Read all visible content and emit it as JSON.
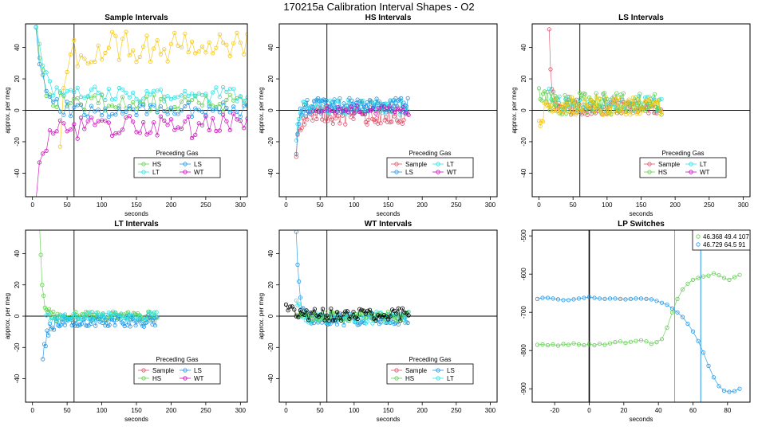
{
  "title": "170215a   Calibration Interval Shapes - O2",
  "colors": {
    "Sample": "#df536b",
    "HS": "#61d04f",
    "LS": "#2297e6",
    "LT": "#28e2e5",
    "WT": "#cd0bbc",
    "yellow": "#f5c710",
    "black": "#000000"
  },
  "chart_data": [
    {
      "type": "scatter",
      "title": "Sample Intervals",
      "xlabel": "seconds",
      "ylabel": "approx. per meg",
      "xlim": [
        -10,
        310
      ],
      "ylim": [
        -55,
        55
      ],
      "xticks": [
        0,
        50,
        100,
        150,
        200,
        250,
        300
      ],
      "yticks": [
        -40,
        -20,
        0,
        20,
        40
      ],
      "vline": 60,
      "hline": 0,
      "legend_title": "Preceding Gas",
      "legend": [
        "HS",
        "LS",
        "LT",
        "WT"
      ],
      "series": [
        {
          "name": "HS",
          "color": "HS",
          "start": 5,
          "end": 310,
          "step": 5,
          "amp": 6,
          "base": 5,
          "decay_amp": 60,
          "decay_tau": 8,
          "seed": 1
        },
        {
          "name": "LS",
          "color": "LS",
          "start": 5,
          "end": 310,
          "step": 5,
          "amp": 5,
          "base": 0,
          "decay_amp": 55,
          "decay_tau": 10,
          "seed": 2
        },
        {
          "name": "LT",
          "color": "LT",
          "start": 5,
          "end": 310,
          "step": 5,
          "amp": 5,
          "base": 10,
          "decay_amp": 45,
          "decay_tau": 10,
          "seed": 3
        },
        {
          "name": "WT",
          "color": "WT",
          "start": 5,
          "end": 310,
          "step": 5,
          "amp": 8,
          "base": -10,
          "decay_amp": -45,
          "decay_tau": 12,
          "seed": 4
        },
        {
          "name": "",
          "color": "yellow",
          "start": 40,
          "end": 310,
          "step": 5,
          "amp": 10,
          "base": 40,
          "decay_amp": -60,
          "decay_tau": 8,
          "seed": 5
        }
      ]
    },
    {
      "type": "scatter",
      "title": "HS Intervals",
      "xlabel": "seconds",
      "ylabel": "approx. per meg",
      "xlim": [
        -10,
        310
      ],
      "ylim": [
        -55,
        55
      ],
      "xticks": [
        0,
        50,
        100,
        150,
        200,
        250,
        300
      ],
      "yticks": [
        -40,
        -20,
        0,
        20,
        40
      ],
      "vline": 60,
      "hline": 0,
      "legend_title": "Preceding Gas",
      "legend": [
        "Sample",
        "LT",
        "LS",
        "WT"
      ],
      "series": [
        {
          "name": "Sample",
          "color": "Sample",
          "start": 15,
          "end": 180,
          "step": 2,
          "amp": 6,
          "base": -3,
          "decay_amp": -25,
          "decay_tau": 4,
          "seed": 6
        },
        {
          "name": "LT",
          "color": "LT",
          "start": 15,
          "end": 180,
          "step": 2,
          "amp": 5,
          "base": 2,
          "decay_amp": -20,
          "decay_tau": 4,
          "seed": 7
        },
        {
          "name": "LS",
          "color": "LS",
          "start": 15,
          "end": 180,
          "step": 2,
          "amp": 5,
          "base": 3,
          "decay_amp": -30,
          "decay_tau": 4,
          "seed": 8
        },
        {
          "name": "WT",
          "color": "WT",
          "start": 40,
          "end": 180,
          "step": 4,
          "amp": 3,
          "base": 0,
          "decay_amp": 0,
          "decay_tau": 4,
          "seed": 9
        }
      ]
    },
    {
      "type": "scatter",
      "title": "LS Intervals",
      "xlabel": "seconds",
      "ylabel": "approx. per meg",
      "xlim": [
        -10,
        310
      ],
      "ylim": [
        -55,
        55
      ],
      "xticks": [
        0,
        50,
        100,
        150,
        200,
        250,
        300
      ],
      "yticks": [
        -40,
        -20,
        0,
        20,
        40
      ],
      "vline": 60,
      "hline": 0,
      "legend_title": "Preceding Gas",
      "legend": [
        "Sample",
        "LT",
        "HS",
        "WT"
      ],
      "series": [
        {
          "name": "Sample",
          "color": "Sample",
          "start": 15,
          "end": 180,
          "step": 2,
          "amp": 5,
          "base": 2,
          "decay_amp": 50,
          "decay_tau": 3,
          "seed": 10
        },
        {
          "name": "LT",
          "color": "LT",
          "start": 15,
          "end": 180,
          "step": 3,
          "amp": 5,
          "base": 4,
          "decay_amp": 10,
          "decay_tau": 5,
          "seed": 11
        },
        {
          "name": "HS",
          "color": "HS",
          "start": 0,
          "end": 180,
          "step": 2,
          "amp": 7,
          "base": 4,
          "decay_amp": 10,
          "decay_tau": 8,
          "seed": 12
        },
        {
          "name": "",
          "color": "yellow",
          "start": 0,
          "end": 180,
          "step": 2,
          "amp": 6,
          "base": 3,
          "decay_amp": -10,
          "decay_tau": 8,
          "seed": 13
        }
      ]
    },
    {
      "type": "scatter",
      "title": "LT Intervals",
      "xlabel": "seconds",
      "ylabel": "approx. per meg",
      "xlim": [
        -10,
        310
      ],
      "ylim": [
        -55,
        55
      ],
      "xticks": [
        0,
        50,
        100,
        150,
        200,
        250,
        300
      ],
      "yticks": [
        -40,
        -20,
        0,
        20,
        40
      ],
      "vline": 60,
      "hline": 0,
      "legend_title": "Preceding Gas",
      "legend": [
        "Sample",
        "LS",
        "HS",
        "WT"
      ],
      "series": [
        {
          "name": "HS",
          "color": "HS",
          "start": 10,
          "end": 180,
          "step": 2,
          "amp": 3,
          "base": 0,
          "decay_amp": 60,
          "decay_tau": 4,
          "seed": 14
        },
        {
          "name": "LS",
          "color": "LS",
          "start": 15,
          "end": 180,
          "step": 2,
          "amp": 4,
          "base": -3,
          "decay_amp": -25,
          "decay_tau": 6,
          "seed": 15
        },
        {
          "name": "LT",
          "color": "LT",
          "start": 20,
          "end": 180,
          "step": 3,
          "amp": 3,
          "base": 0,
          "decay_amp": 0,
          "decay_tau": 4,
          "seed": 16
        }
      ]
    },
    {
      "type": "scatter",
      "title": "WT Intervals",
      "xlabel": "seconds",
      "ylabel": "approx. per meg",
      "xlim": [
        -10,
        310
      ],
      "ylim": [
        -55,
        55
      ],
      "xticks": [
        0,
        50,
        100,
        150,
        200,
        250,
        300
      ],
      "yticks": [
        -40,
        -20,
        0,
        20,
        40
      ],
      "vline": 60,
      "hline": 0,
      "legend_title": "Preceding Gas",
      "legend": [
        "Sample",
        "LS",
        "HS",
        "LT"
      ],
      "series": [
        {
          "name": "LS",
          "color": "LS",
          "start": 15,
          "end": 180,
          "step": 2,
          "amp": 4,
          "base": -2,
          "decay_amp": 55,
          "decay_tau": 4,
          "seed": 17
        },
        {
          "name": "LT",
          "color": "LT",
          "start": 15,
          "end": 180,
          "step": 2,
          "amp": 4,
          "base": -1,
          "decay_amp": 10,
          "decay_tau": 6,
          "seed": 18
        },
        {
          "name": "HS",
          "color": "HS",
          "start": 15,
          "end": 180,
          "step": 3,
          "amp": 3,
          "base": 0,
          "decay_amp": 0,
          "decay_tau": 4,
          "seed": 19
        },
        {
          "name": "",
          "color": "black",
          "start": 0,
          "end": 180,
          "step": 3,
          "amp": 4,
          "base": 1,
          "decay_amp": 5,
          "decay_tau": 8,
          "seed": 20
        }
      ]
    },
    {
      "type": "line",
      "title": "LP Switches",
      "xlabel": "seconds",
      "ylabel": "",
      "xlim": [
        -33,
        93
      ],
      "ylim": [
        -935,
        -485
      ],
      "xticks": [
        -20,
        0,
        20,
        40,
        60,
        80
      ],
      "yticks": [
        -900,
        -800,
        -700,
        -600,
        -500
      ],
      "vline": 0,
      "markers": [
        {
          "x": 49.4,
          "color": "HS"
        },
        {
          "x": 64.5,
          "color": "LS"
        }
      ],
      "legend": [
        "46.368 49.4 107",
        "46.729 64.5 91"
      ],
      "series": [
        {
          "name": "46.368 49.4 107",
          "color": "HS",
          "x": [
            -30,
            -27,
            -24,
            -21,
            -18,
            -15,
            -12,
            -9,
            -6,
            -3,
            0,
            3,
            6,
            9,
            12,
            15,
            18,
            21,
            24,
            27,
            30,
            33,
            36,
            39,
            42,
            45,
            48,
            51,
            54,
            57,
            60,
            63,
            66,
            69,
            72,
            75,
            78,
            81,
            84,
            87
          ],
          "y": [
            -785,
            -784,
            -786,
            -784,
            -787,
            -783,
            -785,
            -781,
            -784,
            -786,
            -783,
            -786,
            -782,
            -785,
            -781,
            -778,
            -776,
            -780,
            -777,
            -775,
            -773,
            -776,
            -782,
            -778,
            -770,
            -740,
            -700,
            -665,
            -640,
            -625,
            -615,
            -610,
            -606,
            -604,
            -598,
            -603,
            -610,
            -615,
            -608,
            -602
          ]
        },
        {
          "name": "46.729 64.5 91",
          "color": "LS",
          "x": [
            -30,
            -27,
            -24,
            -21,
            -18,
            -15,
            -12,
            -9,
            -6,
            -3,
            0,
            3,
            6,
            9,
            12,
            15,
            18,
            21,
            24,
            27,
            30,
            33,
            36,
            39,
            42,
            45,
            48,
            51,
            54,
            57,
            60,
            63,
            66,
            69,
            72,
            75,
            78,
            81,
            84,
            87
          ],
          "y": [
            -665,
            -662,
            -662,
            -664,
            -666,
            -668,
            -668,
            -666,
            -664,
            -662,
            -660,
            -662,
            -664,
            -665,
            -664,
            -664,
            -665,
            -666,
            -665,
            -664,
            -664,
            -665,
            -666,
            -670,
            -675,
            -680,
            -690,
            -700,
            -712,
            -730,
            -750,
            -775,
            -805,
            -840,
            -870,
            -893,
            -905,
            -908,
            -906,
            -900
          ]
        }
      ]
    }
  ]
}
